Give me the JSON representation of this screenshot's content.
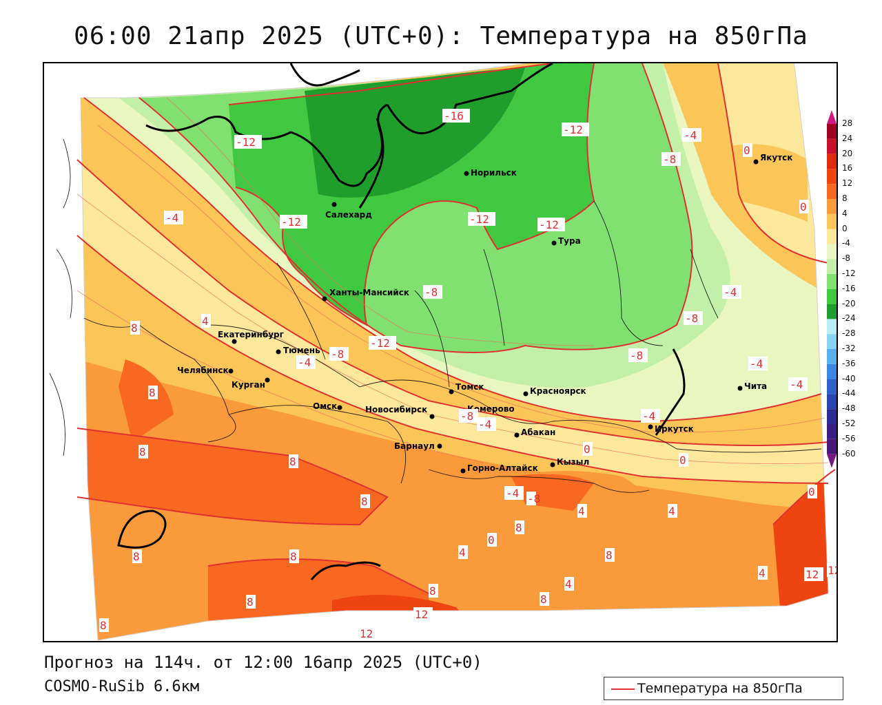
{
  "title": "06:00 21апр 2025 (UTC+0): Температура на 850гПа",
  "footer": {
    "forecast": "Прогноз на 114ч. от 12:00 16апр 2025 (UTC+0)",
    "model": "COSMO-RuSib 6.6км"
  },
  "legend": {
    "label": "Температура на 850гПа",
    "line_color": "#e03030"
  },
  "colorbar": {
    "labels": [
      "28",
      "24",
      "20",
      "16",
      "12",
      "8",
      "4",
      "0",
      "-4",
      "-8",
      "-12",
      "-16",
      "-20",
      "-24",
      "-28",
      "-32",
      "-36",
      "-40",
      "-44",
      "-48",
      "-52",
      "-56",
      "-60"
    ],
    "colors": [
      "#a00020",
      "#c8102a",
      "#e02a10",
      "#f04410",
      "#f86820",
      "#fb9a3a",
      "#fcc558",
      "#fde79a",
      "#eaf6c0",
      "#c3f0a8",
      "#80e070",
      "#3fc840",
      "#1f9e2c",
      "#b8eef8",
      "#88d4f4",
      "#5ab0ec",
      "#3c88e0",
      "#2c64cc",
      "#2a44b0",
      "#2c2a96",
      "#3a1e86",
      "#4a1878"
    ]
  },
  "cities": [
    {
      "name": "Якутск"
    },
    {
      "name": "Норильск"
    },
    {
      "name": "Салехард"
    },
    {
      "name": "Тура"
    },
    {
      "name": "Ханты-Мансийск"
    },
    {
      "name": "Екатеринбург"
    },
    {
      "name": "Тюмень"
    },
    {
      "name": "Челябинск"
    },
    {
      "name": "Курган"
    },
    {
      "name": "Омск"
    },
    {
      "name": "Новосибирск"
    },
    {
      "name": "Томск"
    },
    {
      "name": "Кемерово"
    },
    {
      "name": "Красноярск"
    },
    {
      "name": "Абакан"
    },
    {
      "name": "Барнаул"
    },
    {
      "name": "Горно-Алтайск"
    },
    {
      "name": "Кызыл"
    },
    {
      "name": "Иркутск"
    },
    {
      "name": "Чита"
    }
  ],
  "isoline_labels": [
    "-16",
    "-12",
    "-12",
    "-12",
    "-12",
    "-12",
    "-12",
    "-8",
    "-8",
    "-8",
    "-8",
    "-4",
    "-4",
    "-4",
    "-4",
    "-4",
    "-4",
    "-4",
    "0",
    "0",
    "0",
    "0",
    "0",
    "0",
    "4",
    "4",
    "4",
    "4",
    "4",
    "4",
    "8",
    "8",
    "8",
    "8",
    "8",
    "8",
    "8",
    "8",
    "8",
    "8",
    "8",
    "8",
    "8",
    "12",
    "12",
    "12",
    "12",
    "-8",
    "-4",
    "-8",
    "-4",
    "-8"
  ]
}
